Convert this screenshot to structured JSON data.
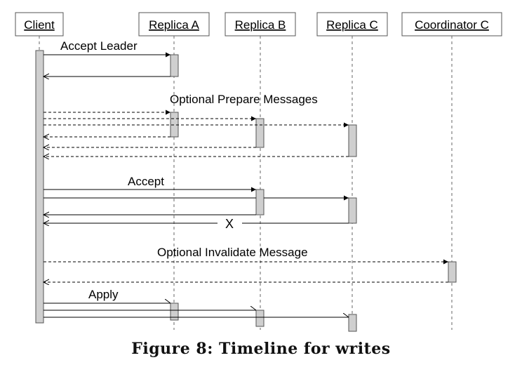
{
  "participants": [
    {
      "id": "client",
      "label": "Client"
    },
    {
      "id": "replica_a",
      "label": "Replica A"
    },
    {
      "id": "replica_b",
      "label": "Replica B"
    },
    {
      "id": "replica_c",
      "label": "Replica C"
    },
    {
      "id": "coordinator_c",
      "label": "Coordinator C"
    }
  ],
  "message_labels": {
    "accept_leader": "Accept Leader",
    "optional_prepare": "Optional Prepare Messages",
    "accept": "Accept",
    "lost_reply": "X",
    "optional_invalidate": "Optional Invalidate Message",
    "apply": "Apply"
  },
  "caption": "Figure 8: Timeline for writes"
}
